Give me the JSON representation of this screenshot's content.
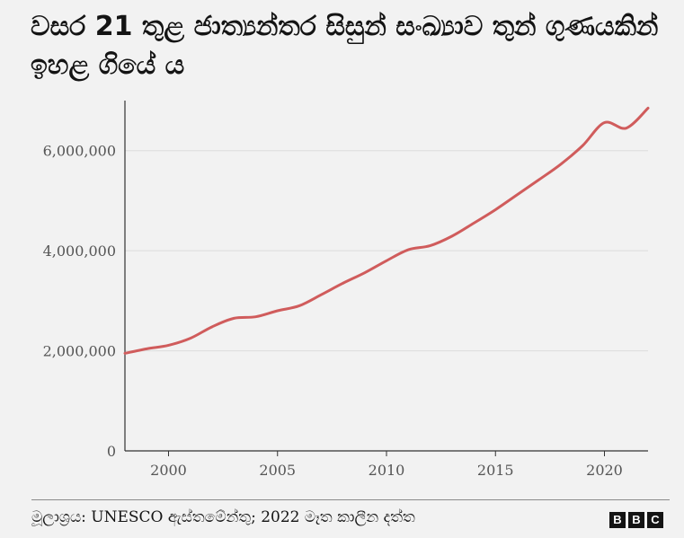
{
  "title": "වසර 21 තුළ ජාත්‍යන්තර සිසුන් සංඛ්‍යාව තුන් ගුණයකින් ඉහළ ගියේ ය",
  "source": "මූලාශ්‍රය: UNESCO ඇස්තමේන්තු; 2022 මෑත කාලීන දත්ත",
  "logo": [
    "B",
    "B",
    "C"
  ],
  "chart_data": {
    "type": "line",
    "title": "වසර 21 තුළ ජාත්‍යන්තර සිසුන් සංඛ්‍යාව තුන් ගුණයකින් ඉහළ ගියේ ය",
    "xlabel": "",
    "ylabel": "",
    "xlim": [
      1998,
      2022
    ],
    "ylim": [
      0,
      7000000
    ],
    "x_ticks": [
      2000,
      2005,
      2010,
      2015,
      2020
    ],
    "y_ticks": [
      0,
      2000000,
      4000000,
      6000000
    ],
    "y_tick_labels": [
      "0",
      "2,000,000",
      "4,000,000",
      "6,000,000"
    ],
    "grid": "horizontal",
    "line_color": "#d05c5c",
    "series": [
      {
        "x": [
          1998,
          1999,
          2000,
          2001,
          2002,
          2003,
          2004,
          2005,
          2006,
          2007,
          2008,
          2009,
          2010,
          2011,
          2012,
          2013,
          2014,
          2015,
          2016,
          2017,
          2018,
          2019,
          2020,
          2021,
          2022
        ],
        "values": [
          1950000,
          2040000,
          2110000,
          2250000,
          2480000,
          2650000,
          2680000,
          2800000,
          2900000,
          3120000,
          3350000,
          3560000,
          3800000,
          4020000,
          4100000,
          4290000,
          4550000,
          4820000,
          5120000,
          5420000,
          5730000,
          6100000,
          6560000,
          6450000,
          6850000
        ]
      }
    ]
  }
}
